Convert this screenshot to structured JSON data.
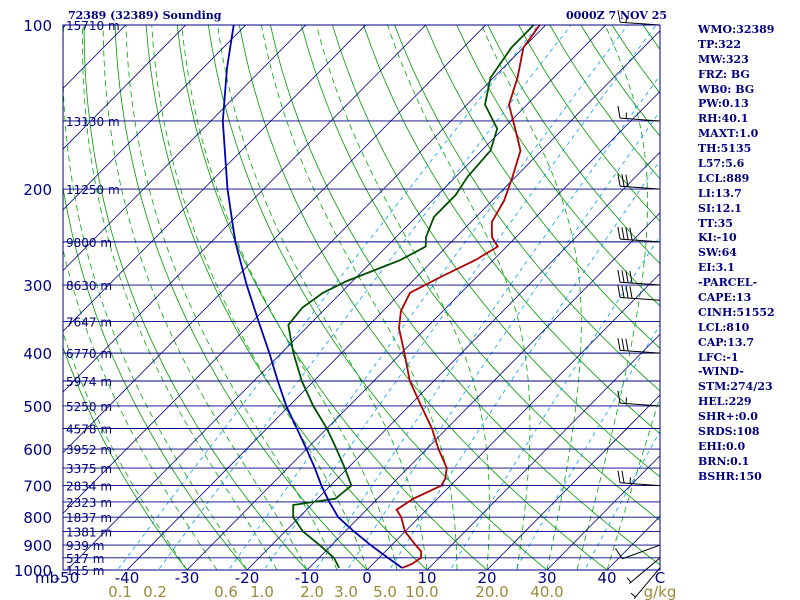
{
  "header": {
    "title": "72389 (32389) Sounding",
    "time": "0000Z  7 NOV 25"
  },
  "indices": [
    "WMO:32389",
    "TP:322",
    "MW:323",
    "FRZ: BG",
    "WB0: BG",
    "PW:0.13",
    "RH:40.1",
    "MAXT:1.0",
    "TH:5135",
    "L57:5.6",
    "LCL:889",
    "LI:13.7",
    "SI:12.1",
    "TT:35",
    "KI:-10",
    "SW:64",
    "EI:3.1",
    "-PARCEL-",
    "CAPE:13",
    "CINH:51552",
    "LCL:810",
    "CAP:13.7",
    "LFC:-1",
    "-WIND-",
    "STM:274/23",
    "HEL:229",
    "SHR+:0.0",
    "SRDS:108",
    "EHI:0.0",
    "BRN:0.1",
    "BSHR:150"
  ],
  "colors": {
    "frame": "#000080",
    "isobar": "#000080",
    "isotherm": "#000080",
    "dry_adiabat": "#009900",
    "moist_adiabat": "#00aa00",
    "mixing_ratio": "#00a0ff",
    "temperature": "#b00000",
    "dewpoint": "#005000",
    "parcel": "#0000b0",
    "tick_text": "#000080",
    "mixing_text": "#9b8a3a"
  },
  "chart_data": {
    "type": "skew-t",
    "title": "72389 (32389) Sounding",
    "x_label": "mb",
    "y_axis": {
      "label": "mb",
      "ticks": [
        100,
        200,
        300,
        400,
        500,
        600,
        700,
        800,
        900,
        1000
      ],
      "range": [
        1000,
        100
      ],
      "scale": "log"
    },
    "x_axis": {
      "unit": "°C",
      "ticks": [
        -50,
        -40,
        -30,
        -20,
        -10,
        0,
        10,
        20,
        30,
        40
      ],
      "end_label": "C"
    },
    "mixing_ratio_axis": {
      "unit": "g/kg",
      "labels": [
        "0.1",
        "0.2",
        "0.6",
        "1.0",
        "2.0",
        "3.0",
        "5.0",
        "10.0",
        "20.0",
        "40.0"
      ]
    },
    "height_labels": [
      {
        "p": 100,
        "label": "15710 m"
      },
      {
        "p": 150,
        "label": "13130 m"
      },
      {
        "p": 200,
        "label": "11250 m"
      },
      {
        "p": 250,
        "label": "9800 m"
      },
      {
        "p": 300,
        "label": "8630 m"
      },
      {
        "p": 350,
        "label": "7647 m"
      },
      {
        "p": 400,
        "label": "6770 m"
      },
      {
        "p": 450,
        "label": "5974 m"
      },
      {
        "p": 500,
        "label": "5250 m"
      },
      {
        "p": 550,
        "label": "4578 m"
      },
      {
        "p": 600,
        "label": "3952 m"
      },
      {
        "p": 650,
        "label": "3375 m"
      },
      {
        "p": 700,
        "label": "2834 m"
      },
      {
        "p": 750,
        "label": "2323 m"
      },
      {
        "p": 800,
        "label": "1837 m"
      },
      {
        "p": 850,
        "label": "1381 m"
      },
      {
        "p": 900,
        "label": "939 m"
      },
      {
        "p": 950,
        "label": "517 m"
      },
      {
        "p": 1000,
        "label": "115 m"
      }
    ],
    "series": [
      {
        "key": "temperature",
        "values": [
          {
            "p": 991,
            "t": 5.5
          },
          {
            "p": 975,
            "t": 6.5
          },
          {
            "p": 950,
            "t": 7
          },
          {
            "p": 925,
            "t": 6
          },
          {
            "p": 900,
            "t": 4
          },
          {
            "p": 850,
            "t": 0
          },
          {
            "p": 800,
            "t": -3
          },
          {
            "p": 775,
            "t": -5
          },
          {
            "p": 740,
            "t": -4
          },
          {
            "p": 700,
            "t": -1.5
          },
          {
            "p": 680,
            "t": -2
          },
          {
            "p": 650,
            "t": -3.5
          },
          {
            "p": 600,
            "t": -8
          },
          {
            "p": 550,
            "t": -12.5
          },
          {
            "p": 500,
            "t": -18
          },
          {
            "p": 450,
            "t": -24
          },
          {
            "p": 400,
            "t": -29.5
          },
          {
            "p": 360,
            "t": -34.5
          },
          {
            "p": 335,
            "t": -37
          },
          {
            "p": 310,
            "t": -38.5
          },
          {
            "p": 290,
            "t": -36
          },
          {
            "p": 270,
            "t": -33
          },
          {
            "p": 255,
            "t": -31.5
          },
          {
            "p": 245,
            "t": -34
          },
          {
            "p": 230,
            "t": -36.5
          },
          {
            "p": 210,
            "t": -38
          },
          {
            "p": 190,
            "t": -40.5
          },
          {
            "p": 170,
            "t": -43.5
          },
          {
            "p": 155,
            "t": -48
          },
          {
            "p": 140,
            "t": -53
          },
          {
            "p": 125,
            "t": -56
          },
          {
            "p": 110,
            "t": -60
          },
          {
            "p": 100,
            "t": -61
          }
        ]
      },
      {
        "key": "dewpoint",
        "values": [
          {
            "p": 991,
            "t": -5
          },
          {
            "p": 950,
            "t": -7.5
          },
          {
            "p": 900,
            "t": -12
          },
          {
            "p": 850,
            "t": -17
          },
          {
            "p": 800,
            "t": -21
          },
          {
            "p": 760,
            "t": -23
          },
          {
            "p": 740,
            "t": -17
          },
          {
            "p": 700,
            "t": -16.5
          },
          {
            "p": 650,
            "t": -20.5
          },
          {
            "p": 600,
            "t": -25
          },
          {
            "p": 550,
            "t": -30
          },
          {
            "p": 500,
            "t": -36
          },
          {
            "p": 450,
            "t": -42
          },
          {
            "p": 400,
            "t": -48
          },
          {
            "p": 355,
            "t": -53.5
          },
          {
            "p": 330,
            "t": -54
          },
          {
            "p": 310,
            "t": -53
          },
          {
            "p": 295,
            "t": -51
          },
          {
            "p": 270,
            "t": -45.5
          },
          {
            "p": 255,
            "t": -43.5
          },
          {
            "p": 245,
            "t": -45
          },
          {
            "p": 225,
            "t": -47
          },
          {
            "p": 205,
            "t": -47
          },
          {
            "p": 190,
            "t": -48
          },
          {
            "p": 170,
            "t": -48.5
          },
          {
            "p": 155,
            "t": -51
          },
          {
            "p": 140,
            "t": -57
          },
          {
            "p": 125,
            "t": -60.5
          },
          {
            "p": 110,
            "t": -62
          },
          {
            "p": 100,
            "t": -62
          }
        ]
      },
      {
        "key": "parcel",
        "values": [
          {
            "p": 991,
            "t": 5.5
          },
          {
            "p": 950,
            "t": 1.5
          },
          {
            "p": 900,
            "t": -3.5
          },
          {
            "p": 850,
            "t": -8.5
          },
          {
            "p": 800,
            "t": -13.5
          },
          {
            "p": 750,
            "t": -17.5
          },
          {
            "p": 700,
            "t": -21.5
          },
          {
            "p": 650,
            "t": -25.5
          },
          {
            "p": 600,
            "t": -30
          },
          {
            "p": 550,
            "t": -35
          },
          {
            "p": 500,
            "t": -40.5
          },
          {
            "p": 450,
            "t": -46
          },
          {
            "p": 400,
            "t": -52
          },
          {
            "p": 350,
            "t": -59
          },
          {
            "p": 300,
            "t": -67
          },
          {
            "p": 250,
            "t": -76
          },
          {
            "p": 200,
            "t": -86
          },
          {
            "p": 150,
            "t": -98
          },
          {
            "p": 120,
            "t": -106
          },
          {
            "p": 100,
            "t": -112
          }
        ]
      }
    ],
    "wind_barbs": [
      {
        "p": 100,
        "dir": 274,
        "speed": 15
      },
      {
        "p": 150,
        "dir": 274,
        "speed": 15
      },
      {
        "p": 200,
        "dir": 274,
        "speed": 30
      },
      {
        "p": 250,
        "dir": 274,
        "speed": 40
      },
      {
        "p": 300,
        "dir": 274,
        "speed": 40
      },
      {
        "p": 320,
        "dir": 274,
        "speed": 40
      },
      {
        "p": 400,
        "dir": 274,
        "speed": 30
      },
      {
        "p": 500,
        "dir": 274,
        "speed": 15
      },
      {
        "p": 700,
        "dir": 274,
        "speed": 25
      },
      {
        "p": 900,
        "dir": 250,
        "speed": 10
      },
      {
        "p": 950,
        "dir": 230,
        "speed": 5
      },
      {
        "p": 991,
        "dir": 220,
        "speed": 5
      }
    ]
  }
}
